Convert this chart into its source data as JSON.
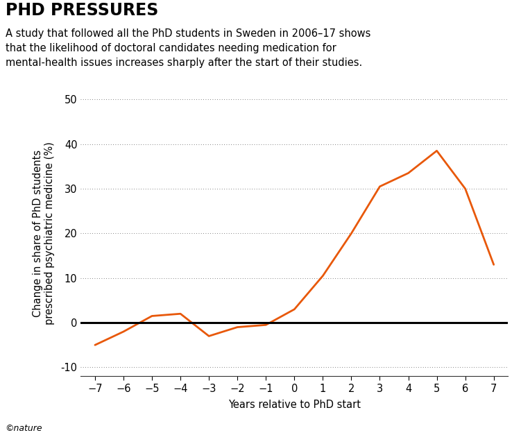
{
  "title": "PHD PRESSURES",
  "subtitle": "A study that followed all the PhD students in Sweden in 2006–17 shows\nthat the likelihood of doctoral candidates needing medication for\nmental-health issues increases sharply after the start of their studies.",
  "xlabel": "Years relative to PhD start",
  "ylabel": "Change in share of PhD students\nprescribed psychiatric medicine (%)",
  "x": [
    -7,
    -6,
    -5,
    -4,
    -3,
    -2,
    -1,
    0,
    1,
    2,
    3,
    4,
    5,
    6,
    7
  ],
  "y": [
    -5.0,
    -2.0,
    1.5,
    2.0,
    -3.0,
    -1.0,
    -0.5,
    3.0,
    10.5,
    20.0,
    30.5,
    33.5,
    38.5,
    30.0,
    13.0
  ],
  "line_color": "#E8580A",
  "zero_line_color": "#000000",
  "grid_color": "#555555",
  "background_color": "#ffffff",
  "title_fontsize": 17,
  "subtitle_fontsize": 10.5,
  "axis_label_fontsize": 10.5,
  "tick_fontsize": 10.5,
  "ylim": [
    -12,
    52
  ],
  "xlim": [
    -7.5,
    7.5
  ],
  "yticks": [
    -10,
    0,
    10,
    20,
    30,
    40,
    50
  ],
  "xticks": [
    -7,
    -6,
    -5,
    -4,
    -3,
    -2,
    -1,
    0,
    1,
    2,
    3,
    4,
    5,
    6,
    7
  ],
  "nature_logo_text": "©nature",
  "line_width": 2.0
}
